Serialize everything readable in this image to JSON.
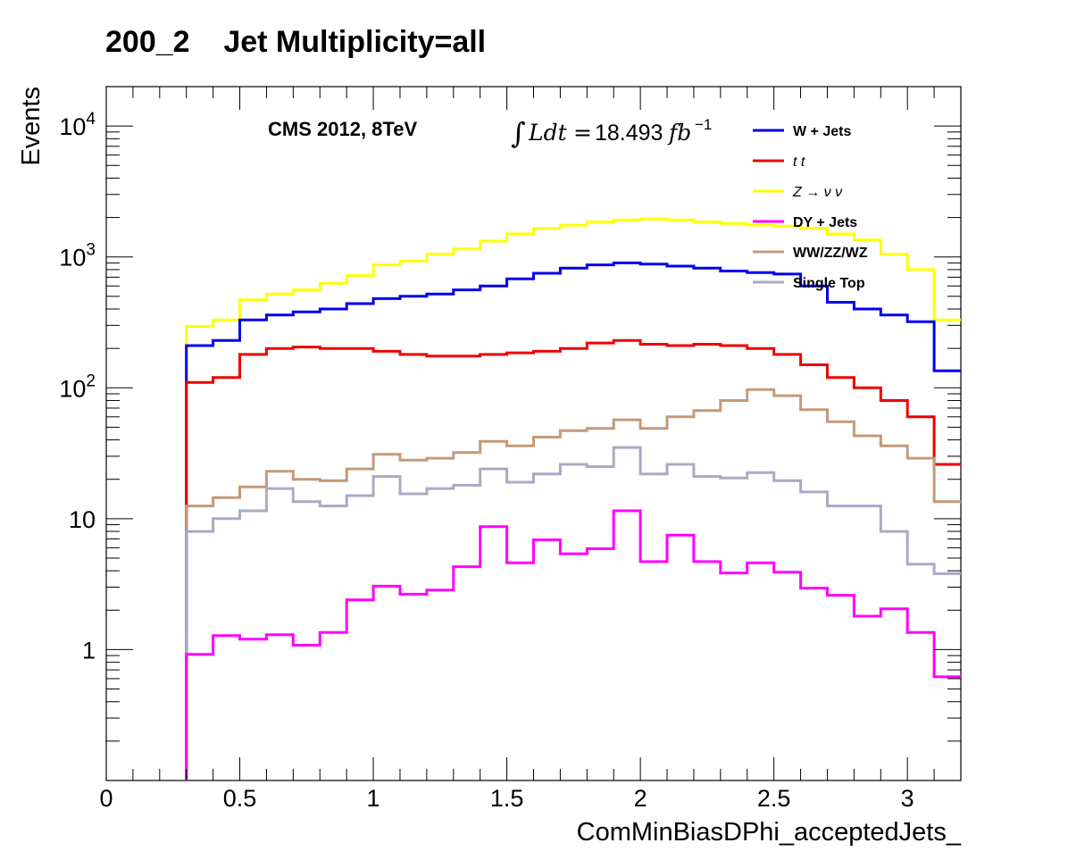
{
  "chart_data": {
    "type": "histogram-step",
    "title": "200_2    Jet Multiplicity=all",
    "xlabel": "ComMinBiasDPhi_acceptedJets_",
    "ylabel": "Events",
    "yscale": "log",
    "xlim": [
      0,
      3.2
    ],
    "ylim": [
      0.1,
      20000
    ],
    "x_ticks": [
      "0",
      "0.5",
      "1",
      "1.5",
      "2",
      "2.5",
      "3"
    ],
    "y_ticks": [
      {
        "base": "1",
        "exp": ""
      },
      {
        "base": "10",
        "exp": ""
      },
      {
        "base": "10",
        "exp": "2"
      },
      {
        "base": "10",
        "exp": "3"
      },
      {
        "base": "10",
        "exp": "4"
      }
    ],
    "annotations": {
      "experiment": "CMS 2012, 8TeV",
      "lumi_integral": "∫",
      "lumi_lhs": "Ldt",
      "lumi_eq": "=",
      "lumi_value": "18.493",
      "lumi_unit": "fb",
      "lumi_exp": "−1"
    },
    "legend_position": "top-right",
    "bin_edges": [
      0,
      0.1,
      0.2,
      0.3,
      0.4,
      0.5,
      0.6,
      0.7,
      0.8,
      0.9,
      1.0,
      1.1,
      1.2,
      1.3,
      1.4,
      1.5,
      1.6,
      1.7,
      1.8,
      1.9,
      2.0,
      2.1,
      2.2,
      2.3,
      2.4,
      2.5,
      2.6,
      2.7,
      2.8,
      2.9,
      3.0,
      3.1,
      3.2
    ],
    "series": [
      {
        "name": "Z → ν ν",
        "legend_label": "Z → ν  ν",
        "color": "#ffff00",
        "values": [
          0,
          0,
          0,
          295,
          330,
          470,
          520,
          560,
          630,
          720,
          870,
          930,
          1050,
          1150,
          1320,
          1500,
          1650,
          1750,
          1850,
          1920,
          1950,
          1920,
          1850,
          1800,
          1750,
          1720,
          1650,
          1500,
          1350,
          1050,
          800,
          330
        ]
      },
      {
        "name": "W + Jets",
        "legend_label": "W + Jets",
        "color": "#0000ee",
        "values": [
          0,
          0,
          0,
          210,
          230,
          330,
          360,
          380,
          400,
          440,
          480,
          500,
          520,
          560,
          600,
          680,
          750,
          820,
          870,
          900,
          880,
          850,
          820,
          780,
          760,
          740,
          600,
          450,
          400,
          360,
          320,
          135
        ]
      },
      {
        "name": "t t",
        "legend_label": "t   t",
        "color": "#ee0000",
        "values": [
          0,
          0,
          0,
          110,
          120,
          180,
          200,
          205,
          200,
          200,
          190,
          180,
          175,
          175,
          180,
          185,
          190,
          200,
          220,
          230,
          215,
          210,
          215,
          210,
          200,
          180,
          150,
          120,
          100,
          80,
          60,
          26
        ]
      },
      {
        "name": "WW/ZZ/WZ",
        "legend_label": "WW/ZZ/WZ",
        "color": "#c49a7a",
        "values": [
          0,
          0,
          0,
          12.5,
          14.5,
          17.5,
          23,
          20,
          19.5,
          24,
          31,
          28,
          29,
          32,
          39,
          36,
          42,
          47,
          49,
          57,
          49,
          60,
          67,
          80,
          97,
          87,
          68,
          55,
          43,
          36,
          29,
          13.5
        ]
      },
      {
        "name": "Single Top",
        "legend_label": "Single Top",
        "color": "#aaaac4",
        "values": [
          0,
          0,
          0,
          8,
          10,
          11.5,
          17,
          13.5,
          12.5,
          15,
          21,
          15.5,
          17,
          18,
          24,
          19,
          22,
          26,
          25,
          35,
          22,
          26,
          21,
          20.5,
          22.5,
          19.5,
          16,
          12.5,
          12.5,
          8,
          4.5,
          3.8
        ]
      },
      {
        "name": "DY + Jets",
        "legend_label": "DY + Jets",
        "color": "#ff00ff",
        "values": [
          0,
          0,
          0,
          0.92,
          1.28,
          1.2,
          1.3,
          1.08,
          1.35,
          2.4,
          3.05,
          2.65,
          2.85,
          4.3,
          8.7,
          4.6,
          6.9,
          5.4,
          5.9,
          11.5,
          4.7,
          7.5,
          4.7,
          3.85,
          4.6,
          3.9,
          2.95,
          2.6,
          1.8,
          2.05,
          1.35,
          0.62
        ]
      }
    ],
    "legend_order": [
      "W + Jets",
      "t t",
      "Z → ν ν",
      "DY + Jets",
      "WW/ZZ/WZ",
      "Single Top"
    ]
  }
}
